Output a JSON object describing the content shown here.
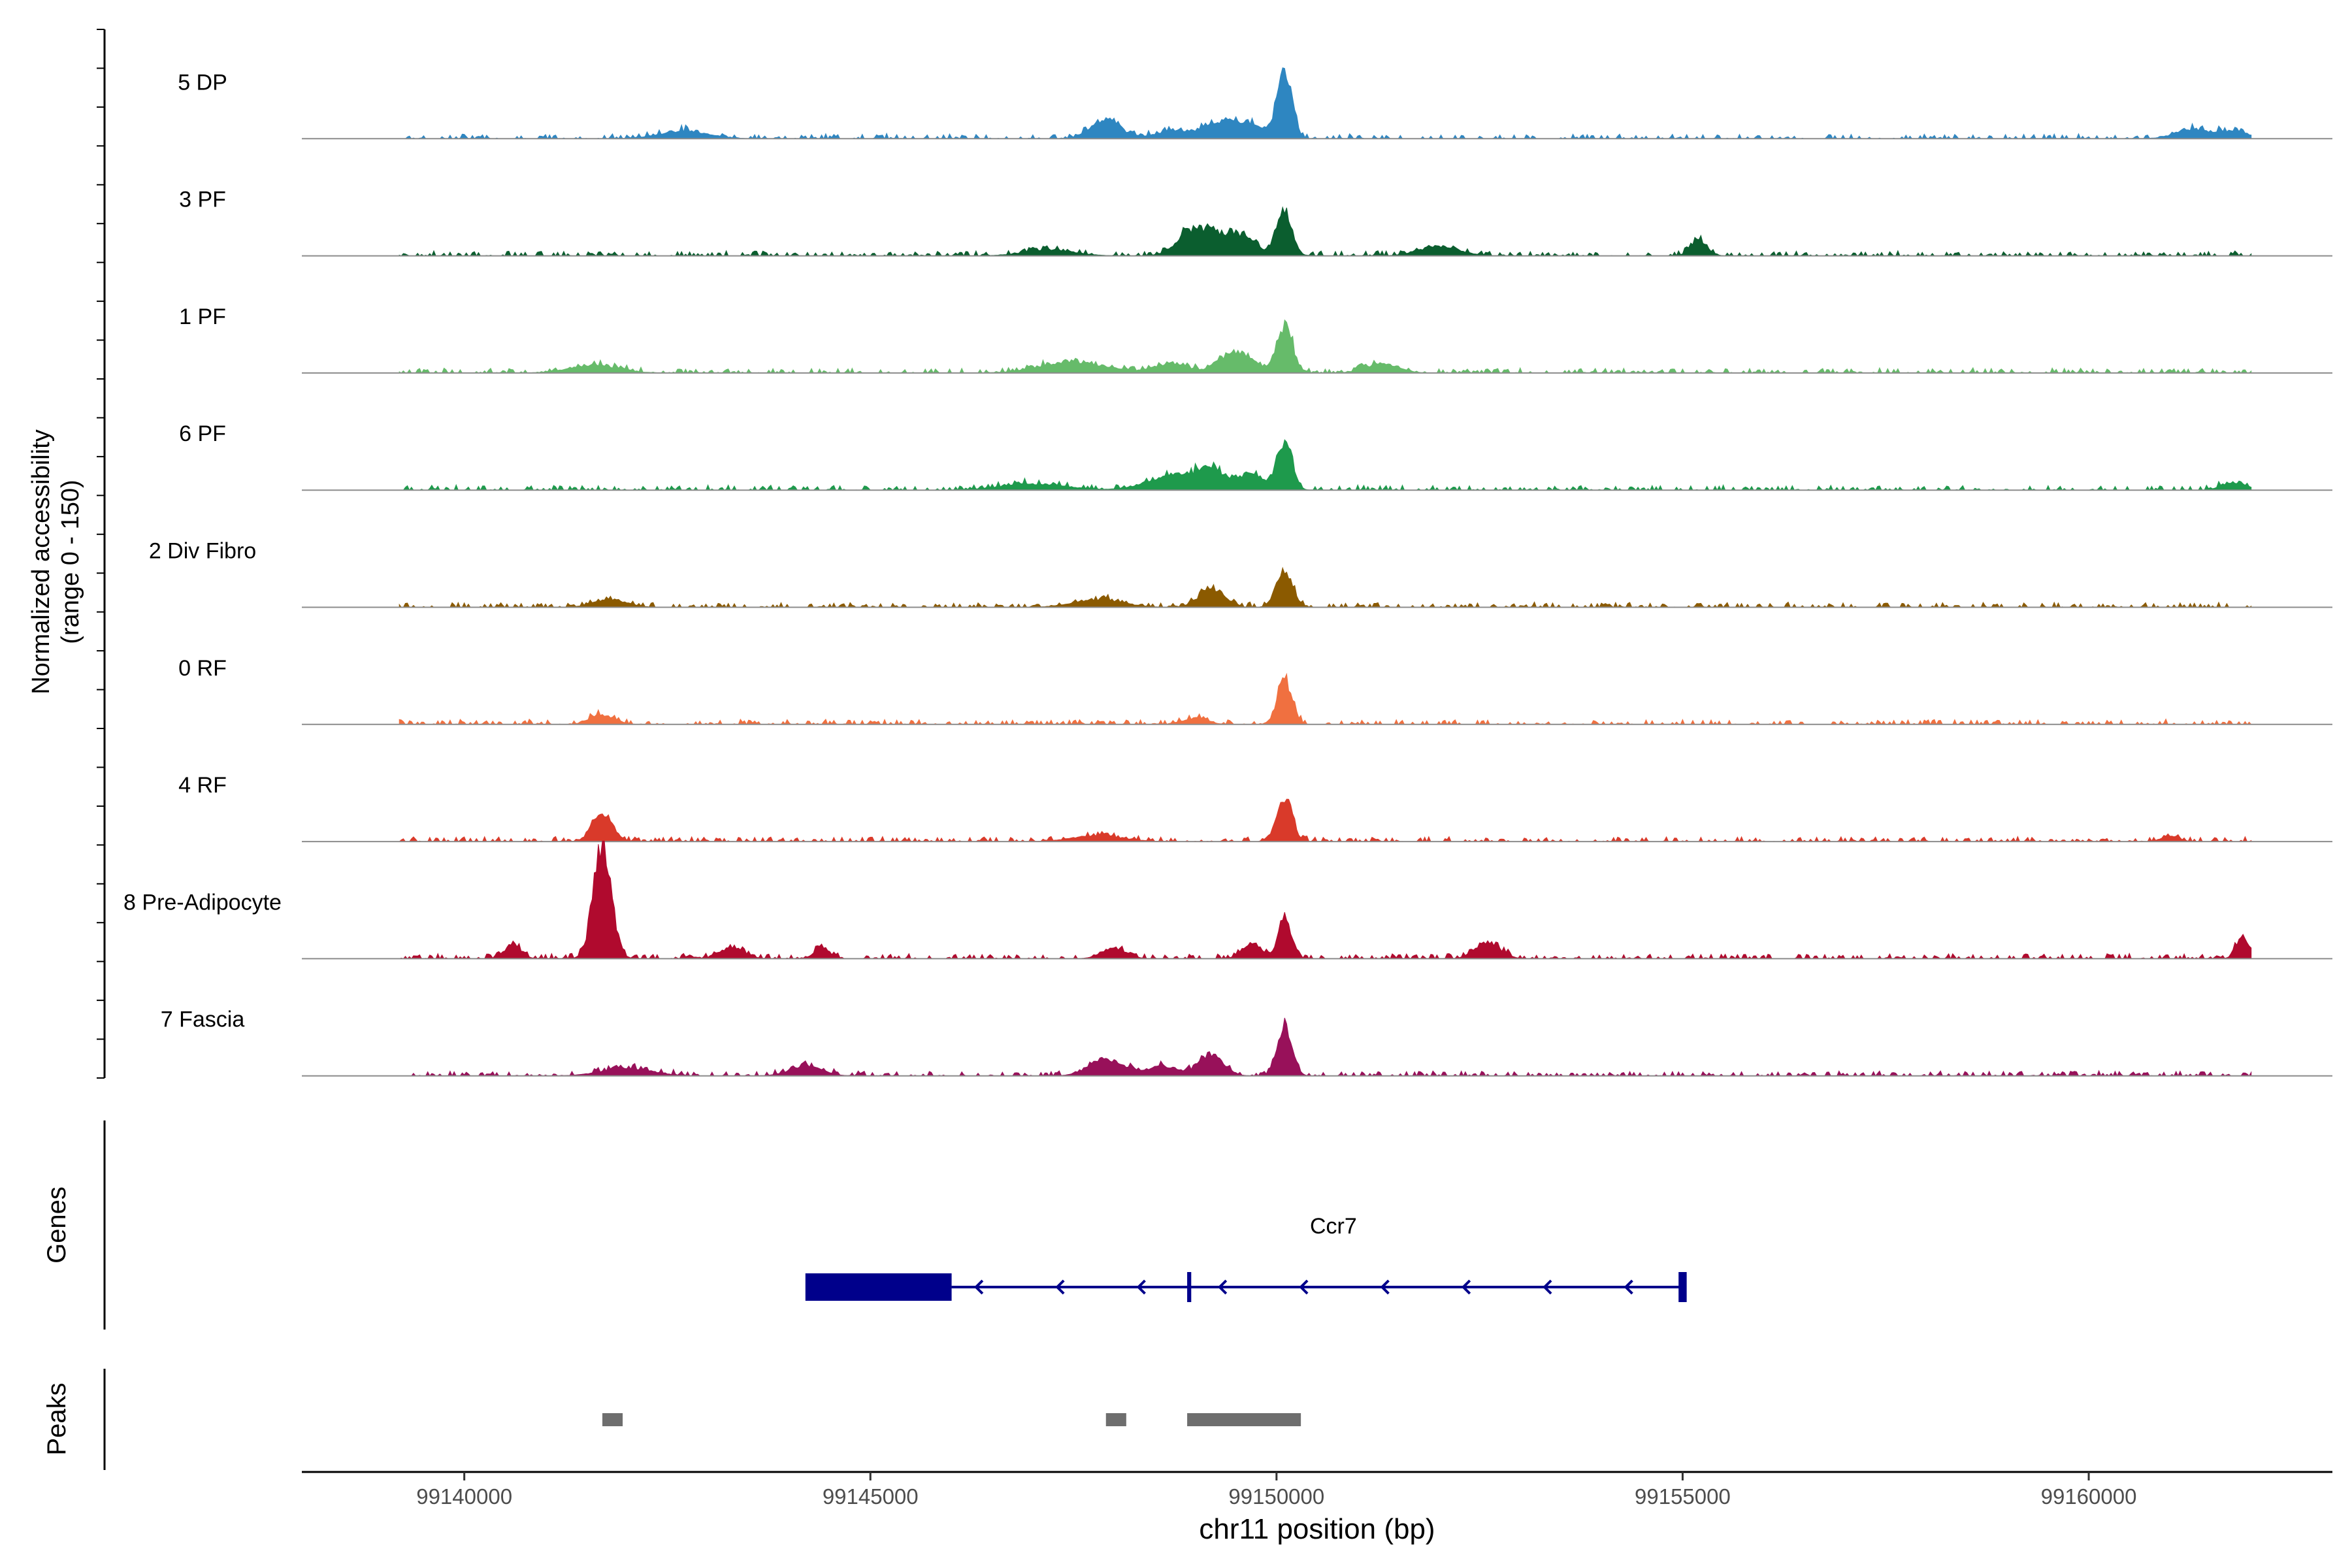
{
  "chart_data": {
    "type": "area",
    "xlabel": "chr11 position (bp)",
    "ylabel_line1": "Normalized accessibility",
    "ylabel_line2": "(range 0 - 150)",
    "xlim": [
      99138000,
      99163000
    ],
    "ylim": [
      0,
      150
    ],
    "x_ticks": [
      99140000,
      99145000,
      99150000,
      99155000,
      99160000
    ],
    "x_tick_labels": [
      "99140000",
      "99145000",
      "99150000",
      "99155000",
      "99160000"
    ],
    "tracks": [
      {
        "name": "5 DP",
        "color": "#2E86C1",
        "peaks": [
          [
            99142700,
            10,
            300
          ],
          [
            99147900,
            24,
            180
          ],
          [
            99148700,
            10,
            200
          ],
          [
            99149200,
            18,
            150
          ],
          [
            99149600,
            22,
            200
          ],
          [
            99150100,
            85,
            90
          ],
          [
            99161300,
            12,
            220
          ],
          [
            99161800,
            10,
            150
          ]
        ]
      },
      {
        "name": "3 PF",
        "color": "#0B5E2F",
        "peaks": [
          [
            99149000,
            34,
            200
          ],
          [
            99149500,
            28,
            220
          ],
          [
            99150100,
            58,
            90
          ],
          [
            99152000,
            12,
            250
          ],
          [
            99155200,
            20,
            100
          ],
          [
            99147200,
            8,
            300
          ]
        ]
      },
      {
        "name": "1 PF",
        "color": "#66BB6A",
        "peaks": [
          [
            99141600,
            10,
            300
          ],
          [
            99147500,
            14,
            400
          ],
          [
            99148700,
            12,
            200
          ],
          [
            99149500,
            28,
            200
          ],
          [
            99150100,
            58,
            100
          ],
          [
            99151300,
            12,
            200
          ]
        ]
      },
      {
        "name": "6 PF",
        "color": "#1E9A4C",
        "peaks": [
          [
            99148700,
            18,
            300
          ],
          [
            99149200,
            22,
            200
          ],
          [
            99149700,
            20,
            150
          ],
          [
            99150100,
            60,
            90
          ],
          [
            99161800,
            10,
            150
          ],
          [
            99147000,
            8,
            400
          ]
        ]
      },
      {
        "name": "2 Div Fibro",
        "color": "#8B5A00",
        "peaks": [
          [
            99149200,
            24,
            150
          ],
          [
            99150100,
            48,
            100
          ],
          [
            99141800,
            10,
            200
          ],
          [
            99147800,
            10,
            300
          ]
        ]
      },
      {
        "name": "0 RF",
        "color": "#F07040",
        "peaks": [
          [
            99141700,
            12,
            150
          ],
          [
            99150100,
            58,
            90
          ],
          [
            99149000,
            8,
            150
          ]
        ]
      },
      {
        "name": "4 RF",
        "color": "#D93A2A",
        "peaks": [
          [
            99141700,
            38,
            120
          ],
          [
            99150100,
            58,
            90
          ],
          [
            99147800,
            8,
            300
          ],
          [
            99161000,
            8,
            100
          ]
        ]
      },
      {
        "name": "8 Pre-Adipocyte",
        "color": "#B00A2E",
        "peaks": [
          [
            99141700,
            150,
            110
          ],
          [
            99150100,
            54,
            80
          ],
          [
            99140600,
            18,
            100
          ],
          [
            99143300,
            14,
            150
          ],
          [
            99152600,
            22,
            150
          ],
          [
            99161900,
            28,
            80
          ],
          [
            99144400,
            12,
            100
          ],
          [
            99148000,
            14,
            150
          ],
          [
            99149700,
            20,
            120
          ]
        ]
      },
      {
        "name": "7 Fascia",
        "color": "#98115A",
        "peaks": [
          [
            99150100,
            64,
            90
          ],
          [
            99149200,
            28,
            150
          ],
          [
            99147900,
            22,
            200
          ],
          [
            99144200,
            12,
            200
          ],
          [
            99148600,
            12,
            200
          ],
          [
            99142000,
            10,
            300
          ]
        ]
      }
    ],
    "genes": {
      "label": "Genes",
      "name": "Ccr7",
      "color": "#00008B",
      "exons": [
        [
          99144200,
          99146000
        ],
        [
          99148900,
          99148950
        ],
        [
          99154950,
          99155050
        ]
      ],
      "intron": [
        99146000,
        99155000
      ],
      "strand": "-"
    },
    "peaks_track": {
      "label": "Peaks",
      "color": "#6E6E6E",
      "regions": [
        [
          99141700,
          99141950
        ],
        [
          99147900,
          99148150
        ],
        [
          99148900,
          99150300
        ]
      ]
    }
  }
}
